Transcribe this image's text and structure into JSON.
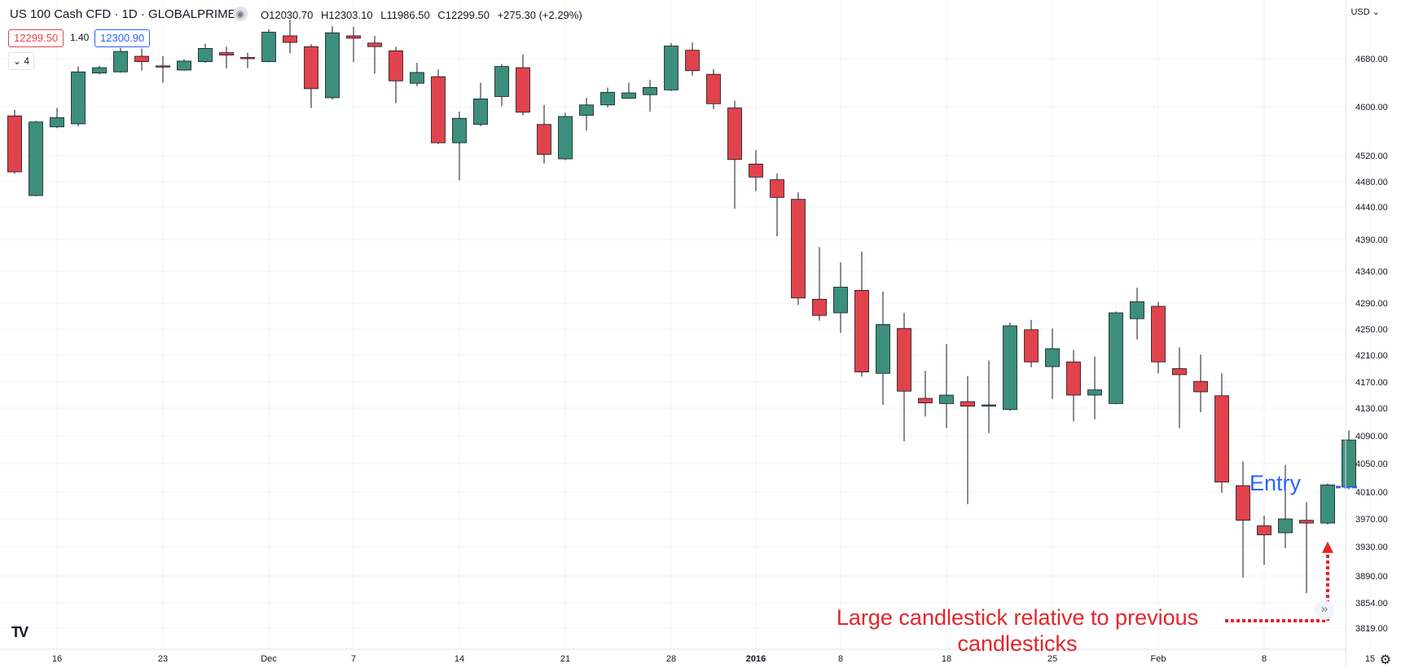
{
  "header": {
    "title": "US 100 Cash CFD · 1D · GLOBALPRIME",
    "ohlc": {
      "open": "O12030.70",
      "high": "H12303.10",
      "low": "L11986.50",
      "close": "C12299.50",
      "change": "+275.30 (+2.29%)"
    },
    "sell_price": "12299.50",
    "spread": "1.40",
    "buy_price": "12300.90",
    "indicators_count": "4"
  },
  "currency": "USD",
  "annotations": {
    "entry_label": "Entry",
    "large_candle_label": "Large candlestick relative to previous candlesticks"
  },
  "colors": {
    "up": "#3c8f7c",
    "down": "#e0434b",
    "entry": "#2962ff",
    "annotation": "#e3252b"
  },
  "chart_data": {
    "type": "candlestick",
    "title": "US 100 Cash CFD · 1D · GLOBALPRIME",
    "price_ticks": [
      4680,
      4600,
      4520,
      4480,
      4440,
      4390,
      4340,
      4290,
      4250,
      4210,
      4170,
      4130,
      4090,
      4050,
      4010,
      3970,
      3930,
      3890,
      3854,
      3819
    ],
    "x_ticks": [
      {
        "label": "16",
        "index": 1
      },
      {
        "label": "23",
        "index": 6
      },
      {
        "label": "Dec",
        "index": 11
      },
      {
        "label": "7",
        "index": 15
      },
      {
        "label": "14",
        "index": 20
      },
      {
        "label": "21",
        "index": 25
      },
      {
        "label": "28",
        "index": 30
      },
      {
        "label": "2016",
        "index": 34
      },
      {
        "label": "8",
        "index": 38
      },
      {
        "label": "18",
        "index": 43
      },
      {
        "label": "25",
        "index": 48
      },
      {
        "label": "Feb",
        "index": 53
      },
      {
        "label": "8",
        "index": 58
      },
      {
        "label": "15",
        "index": 63
      }
    ],
    "grid": true,
    "candles": [
      {
        "o": 4585,
        "h": 4595,
        "l": 4492,
        "c": 4495
      },
      {
        "o": 4458,
        "h": 4577,
        "l": 4457,
        "c": 4575
      },
      {
        "o": 4567,
        "h": 4598,
        "l": 4565,
        "c": 4582
      },
      {
        "o": 4572,
        "h": 4667,
        "l": 4568,
        "c": 4658
      },
      {
        "o": 4656,
        "h": 4668,
        "l": 4654,
        "c": 4665
      },
      {
        "o": 4658,
        "h": 4698,
        "l": 4657,
        "c": 4692
      },
      {
        "o": 4684,
        "h": 4697,
        "l": 4660,
        "c": 4675
      },
      {
        "o": 4668,
        "h": 4684,
        "l": 4640,
        "c": 4666
      },
      {
        "o": 4661,
        "h": 4679,
        "l": 4660,
        "c": 4676
      },
      {
        "o": 4675,
        "h": 4705,
        "l": 4673,
        "c": 4697
      },
      {
        "o": 4690,
        "h": 4700,
        "l": 4664,
        "c": 4686
      },
      {
        "o": 4682,
        "h": 4690,
        "l": 4664,
        "c": 4681
      },
      {
        "o": 4675,
        "h": 4729,
        "l": 4674,
        "c": 4724
      },
      {
        "o": 4718,
        "h": 4745,
        "l": 4689,
        "c": 4707
      },
      {
        "o": 4700,
        "h": 4704,
        "l": 4598,
        "c": 4630
      },
      {
        "o": 4615,
        "h": 4734,
        "l": 4612,
        "c": 4723
      },
      {
        "o": 4718,
        "h": 4733,
        "l": 4674,
        "c": 4714
      },
      {
        "o": 4706,
        "h": 4718,
        "l": 4655,
        "c": 4700
      },
      {
        "o": 4693,
        "h": 4700,
        "l": 4606,
        "c": 4643
      },
      {
        "o": 4639,
        "h": 4673,
        "l": 4634,
        "c": 4657
      },
      {
        "o": 4650,
        "h": 4662,
        "l": 4539,
        "c": 4541
      },
      {
        "o": 4541,
        "h": 4592,
        "l": 4482,
        "c": 4581
      },
      {
        "o": 4571,
        "h": 4640,
        "l": 4568,
        "c": 4613
      },
      {
        "o": 4617,
        "h": 4671,
        "l": 4601,
        "c": 4667
      },
      {
        "o": 4665,
        "h": 4687,
        "l": 4586,
        "c": 4591
      },
      {
        "o": 4571,
        "h": 4603,
        "l": 4508,
        "c": 4522
      },
      {
        "o": 4515,
        "h": 4590,
        "l": 4513,
        "c": 4584
      },
      {
        "o": 4586,
        "h": 4615,
        "l": 4561,
        "c": 4603
      },
      {
        "o": 4603,
        "h": 4632,
        "l": 4599,
        "c": 4624
      },
      {
        "o": 4614,
        "h": 4640,
        "l": 4613,
        "c": 4623
      },
      {
        "o": 4620,
        "h": 4645,
        "l": 4592,
        "c": 4632
      },
      {
        "o": 4628,
        "h": 4706,
        "l": 4626,
        "c": 4701
      },
      {
        "o": 4694,
        "h": 4707,
        "l": 4652,
        "c": 4660
      },
      {
        "o": 4654,
        "h": 4663,
        "l": 4596,
        "c": 4605
      },
      {
        "o": 4598,
        "h": 4610,
        "l": 4437,
        "c": 4514
      },
      {
        "o": 4507,
        "h": 4529,
        "l": 4465,
        "c": 4487
      },
      {
        "o": 4483,
        "h": 4493,
        "l": 4395,
        "c": 4455
      },
      {
        "o": 4452,
        "h": 4463,
        "l": 4287,
        "c": 4298
      },
      {
        "o": 4296,
        "h": 4378,
        "l": 4263,
        "c": 4271
      },
      {
        "o": 4275,
        "h": 4354,
        "l": 4244,
        "c": 4315
      },
      {
        "o": 4310,
        "h": 4371,
        "l": 4178,
        "c": 4185
      },
      {
        "o": 4183,
        "h": 4308,
        "l": 4135,
        "c": 4257
      },
      {
        "o": 4251,
        "h": 4275,
        "l": 4082,
        "c": 4156
      },
      {
        "o": 4145,
        "h": 4187,
        "l": 4118,
        "c": 4138
      },
      {
        "o": 4137,
        "h": 4227,
        "l": 4101,
        "c": 4150
      },
      {
        "o": 4140,
        "h": 4179,
        "l": 3992,
        "c": 4133
      },
      {
        "o": 4134,
        "h": 4202,
        "l": 4094,
        "c": 4135
      },
      {
        "o": 4128,
        "h": 4260,
        "l": 4126,
        "c": 4255
      },
      {
        "o": 4249,
        "h": 4264,
        "l": 4192,
        "c": 4200
      },
      {
        "o": 4193,
        "h": 4251,
        "l": 4144,
        "c": 4220
      },
      {
        "o": 4200,
        "h": 4218,
        "l": 4111,
        "c": 4150
      },
      {
        "o": 4150,
        "h": 4208,
        "l": 4114,
        "c": 4158
      },
      {
        "o": 4137,
        "h": 4277,
        "l": 4136,
        "c": 4275
      },
      {
        "o": 4266,
        "h": 4314,
        "l": 4234,
        "c": 4292
      },
      {
        "o": 4285,
        "h": 4292,
        "l": 4183,
        "c": 4200
      },
      {
        "o": 4190,
        "h": 4222,
        "l": 4101,
        "c": 4181
      },
      {
        "o": 4171,
        "h": 4211,
        "l": 4124,
        "c": 4155
      },
      {
        "o": 4149,
        "h": 4183,
        "l": 4009,
        "c": 4024
      },
      {
        "o": 4019,
        "h": 4053,
        "l": 3888,
        "c": 3968
      },
      {
        "o": 3960,
        "h": 3975,
        "l": 3905,
        "c": 3947
      },
      {
        "o": 3950,
        "h": 4048,
        "l": 3928,
        "c": 3970
      },
      {
        "o": 3968,
        "h": 3995,
        "l": 3867,
        "c": 3964
      },
      {
        "o": 3964,
        "h": 4022,
        "l": 3962,
        "c": 4020
      },
      {
        "o": 4017,
        "h": 4098,
        "l": 4014,
        "c": 4084
      }
    ]
  }
}
